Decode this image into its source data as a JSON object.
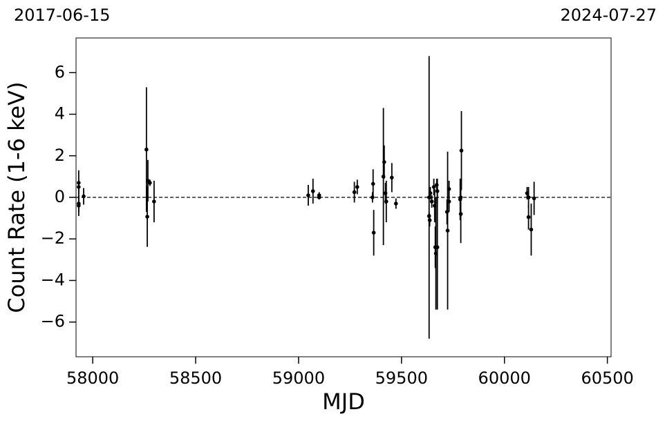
{
  "chart_data": {
    "type": "errorbar",
    "date_start": "2017-06-15",
    "date_end": "2024-07-27",
    "x_label": "MJD",
    "y_label": "Count Rate (1-6 keV)",
    "xlim": [
      57919,
      60518
    ],
    "ylim": [
      -7.67,
      7.67
    ],
    "xticks": [
      58000,
      58500,
      59000,
      59500,
      60000,
      60500
    ],
    "yticks": [
      {
        "value": -6,
        "label": "−6"
      },
      {
        "value": -4,
        "label": "−4"
      },
      {
        "value": -2,
        "label": "−2"
      },
      0,
      2,
      4,
      6
    ],
    "reference_line": 0,
    "series": [
      {
        "color": "#000000",
        "x": [
          57932,
          57932,
          57932,
          57932,
          57956,
          58261,
          58265,
          58268,
          58278,
          58298,
          59047,
          59070,
          59100,
          59100,
          59271,
          59285,
          59359,
          59362,
          59365,
          59412,
          59416,
          59422,
          59426,
          59453,
          59473,
          59634,
          59634,
          59637,
          59640,
          59647,
          59657,
          59661,
          59664,
          59667,
          59671,
          59674,
          59674,
          59721,
          59724,
          59731,
          59731,
          59785,
          59788,
          59788,
          59791,
          60110,
          60117,
          60117,
          60130,
          60144
        ],
        "values": [
          0.7,
          0.5,
          -0.3,
          -0.4,
          0.05,
          2.3,
          -0.93,
          0.8,
          0.7,
          -0.2,
          0.1,
          0.3,
          0.1,
          0.0,
          0.25,
          0.5,
          0.0,
          0.65,
          -1.7,
          1.0,
          1.7,
          0.2,
          -0.2,
          0.95,
          -0.3,
          0.0,
          -0.9,
          -1.1,
          0.2,
          -0.2,
          0.5,
          -0.4,
          -2.4,
          -2.7,
          0.6,
          -2.4,
          0.3,
          -0.7,
          -1.6,
          0.4,
          -0.2,
          -0.1,
          0.0,
          -0.8,
          2.25,
          0.2,
          0.0,
          -0.95,
          -1.55,
          -0.05
        ],
        "errors": [
          0.6,
          0.3,
          0.4,
          0.5,
          0.4,
          3.0,
          1.45,
          1.0,
          0.15,
          1.0,
          0.5,
          0.6,
          0.15,
          0.1,
          0.5,
          0.35,
          0.25,
          0.7,
          1.1,
          3.3,
          0.8,
          0.5,
          1.0,
          0.7,
          0.25,
          6.8,
          0.2,
          0.3,
          0.3,
          0.3,
          0.4,
          0.8,
          1.0,
          2.7,
          0.3,
          3.0,
          0.6,
          0.6,
          3.8,
          0.4,
          0.5,
          1.0,
          0.9,
          1.4,
          1.9,
          0.3,
          0.5,
          0.6,
          1.25,
          0.8
        ]
      }
    ]
  }
}
